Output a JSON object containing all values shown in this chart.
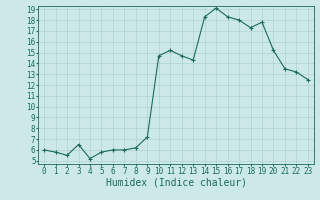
{
  "x": [
    0,
    1,
    2,
    3,
    4,
    5,
    6,
    7,
    8,
    9,
    10,
    11,
    12,
    13,
    14,
    15,
    16,
    17,
    18,
    19,
    20,
    21,
    22,
    23
  ],
  "y": [
    6.0,
    5.8,
    5.5,
    6.5,
    5.2,
    5.8,
    6.0,
    6.0,
    6.2,
    7.2,
    14.7,
    15.2,
    14.7,
    14.3,
    18.3,
    19.1,
    18.3,
    18.0,
    17.3,
    17.8,
    15.2,
    13.5,
    13.2,
    12.5
  ],
  "line_color": "#1a6b5a",
  "marker": "+",
  "marker_size": 3,
  "background_color": "#cce8e8",
  "grid_color": "#aacccc",
  "title": "",
  "xlabel": "Humidex (Indice chaleur)",
  "ylabel": "",
  "ylim": [
    5,
    19
  ],
  "xlim": [
    -0.5,
    23.5
  ],
  "yticks": [
    5,
    6,
    7,
    8,
    9,
    10,
    11,
    12,
    13,
    14,
    15,
    16,
    17,
    18,
    19
  ],
  "xticks": [
    0,
    1,
    2,
    3,
    4,
    5,
    6,
    7,
    8,
    9,
    10,
    11,
    12,
    13,
    14,
    15,
    16,
    17,
    18,
    19,
    20,
    21,
    22,
    23
  ],
  "tick_color": "#1a6b5a",
  "label_fontsize": 5.5,
  "xlabel_fontsize": 7
}
